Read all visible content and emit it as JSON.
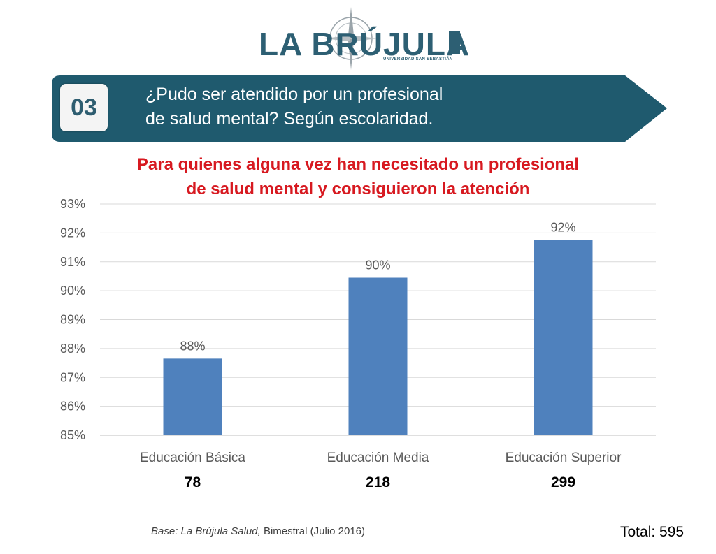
{
  "logo": {
    "name": "LA BRÚJULA",
    "subtitle": "UNIVERSIDAD SAN SEBASTIÁN",
    "brand_color": "#2d5f73"
  },
  "banner": {
    "number": "03",
    "question_line1": "¿Pudo ser atendido por un profesional",
    "question_line2": "de salud mental? Según escolaridad.",
    "color": "#1f5a6e"
  },
  "subtitle_line1": "Para quienes alguna vez han necesitado un profesional",
  "subtitle_line2": "de salud mental y consiguieron la atención",
  "chart_data": {
    "type": "bar",
    "categories": [
      "Educación Básica",
      "Educación Media",
      "Educación Superior"
    ],
    "values": [
      87.65,
      90.45,
      91.75
    ],
    "data_labels": [
      "88%",
      "90%",
      "92%"
    ],
    "counts": [
      "78",
      "218",
      "299"
    ],
    "ylim": [
      85,
      93
    ],
    "yticks": [
      85,
      86,
      87,
      88,
      89,
      90,
      91,
      92,
      93
    ],
    "ytick_labels": [
      "85%",
      "86%",
      "87%",
      "88%",
      "89%",
      "90%",
      "91%",
      "92%",
      "93%"
    ],
    "grid": true,
    "bar_color": "#4f81bd",
    "title": "Para quienes alguna vez han necesitado un profesional de salud mental y consiguieron la atención"
  },
  "footer": {
    "base_label": "Base: La Brújula Salud,",
    "base_detail": " Bimestral (Julio 2016)",
    "total": "Total: 595"
  }
}
